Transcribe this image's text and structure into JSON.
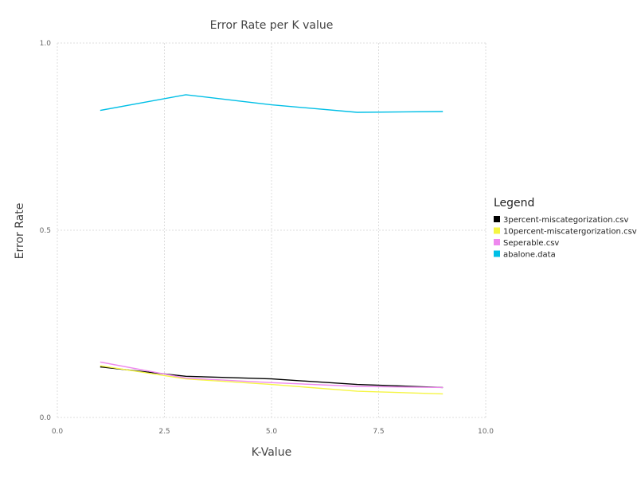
{
  "chart_data": {
    "type": "line",
    "title": "Error Rate per K value",
    "xlabel": "K-Value",
    "ylabel": "Error Rate",
    "xlim": [
      0,
      10
    ],
    "ylim": [
      0,
      1
    ],
    "x_ticks": [
      "0.0",
      "2.5",
      "5.0",
      "7.5",
      "10.0"
    ],
    "y_ticks": [
      "0.0",
      "0.5",
      "1.0"
    ],
    "grid": true,
    "legend_title": "Legend",
    "legend_position": "right",
    "x": [
      1,
      3,
      5,
      7,
      9
    ],
    "series": [
      {
        "name": "3percent-miscategorization.csv",
        "color": "#000000",
        "values": [
          0.135,
          0.11,
          0.103,
          0.088,
          0.08
        ]
      },
      {
        "name": "10percent-miscatergorization.csv",
        "color": "#f5f542",
        "values": [
          0.138,
          0.103,
          0.088,
          0.07,
          0.063
        ]
      },
      {
        "name": "Seperable.csv",
        "color": "#ee88ee",
        "values": [
          0.148,
          0.105,
          0.093,
          0.083,
          0.08
        ]
      },
      {
        "name": "abalone.data",
        "color": "#00bfe6",
        "values": [
          0.82,
          0.862,
          0.835,
          0.815,
          0.817
        ]
      }
    ]
  }
}
